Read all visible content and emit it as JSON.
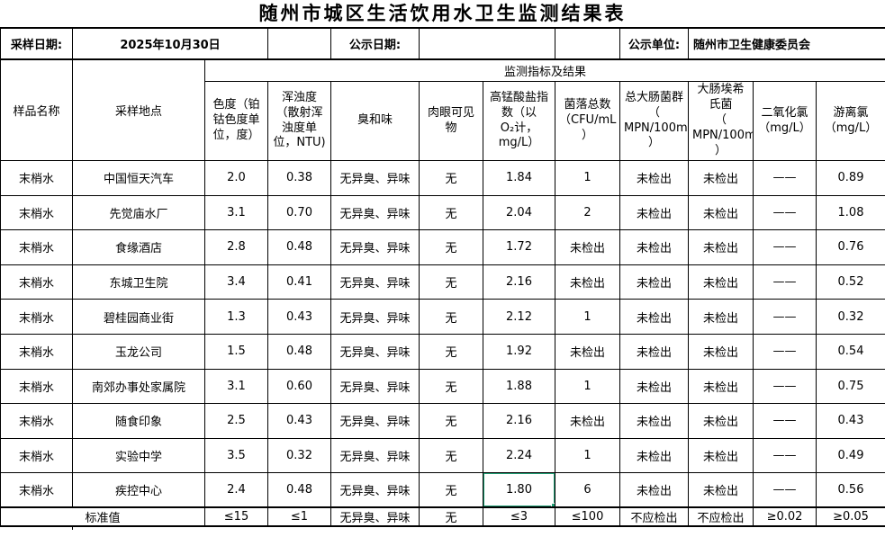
{
  "title": "随州市城区生活饮用水卫生监测结果表",
  "info_bar": {
    "sampling_date_label": "采样日期:",
    "sampling_date": "2025年10月30日",
    "publish_date_label": "公示日期:",
    "publish_date": "",
    "publish_unit_label": "公示单位:",
    "publish_unit": "随州市卫生健康委员会"
  },
  "table": {
    "group_header": "监测指标及结果",
    "columns_fixed": [
      "样品名称",
      "采样地点"
    ],
    "indicator_headers": [
      "色度（铂\n钴色度单\n位，度）",
      "浑浊度\n（散射浑\n浊度单\n位，NTU)",
      "臭和味",
      "肉眼可见\n物",
      "高锰酸盐指\n数（以\nO₂计，\nmg/L）",
      "菌落总数\n（CFU/mL\n）",
      "总大肠菌群\n（\nMPN/100mL\n）",
      "大肠埃希\n氏菌\n（\nMPN/100mL\n）",
      "二氧化氯\n（mg/L）",
      "游离氯\n（mg/L）"
    ],
    "rows": [
      [
        "末梢水",
        "中国恒天汽车",
        "2.0",
        "0.38",
        "无异臭、异味",
        "无",
        "1.84",
        "1",
        "未检出",
        "未检出",
        "——",
        "0.89"
      ],
      [
        "末梢水",
        "先觉庙水厂",
        "3.1",
        "0.70",
        "无异臭、异味",
        "无",
        "2.04",
        "2",
        "未检出",
        "未检出",
        "——",
        "1.08"
      ],
      [
        "末梢水",
        "食缘酒店",
        "2.8",
        "0.48",
        "无异臭、异味",
        "无",
        "1.72",
        "未检出",
        "未检出",
        "未检出",
        "——",
        "0.76"
      ],
      [
        "末梢水",
        "东城卫生院",
        "3.4",
        "0.41",
        "无异臭、异味",
        "无",
        "2.16",
        "未检出",
        "未检出",
        "未检出",
        "——",
        "0.52"
      ],
      [
        "末梢水",
        "碧桂园商业街",
        "1.3",
        "0.43",
        "无异臭、异味",
        "无",
        "2.12",
        "1",
        "未检出",
        "未检出",
        "——",
        "0.32"
      ],
      [
        "末梢水",
        "玉龙公司",
        "1.5",
        "0.48",
        "无异臭、异味",
        "无",
        "1.92",
        "未检出",
        "未检出",
        "未检出",
        "——",
        "0.54"
      ],
      [
        "末梢水",
        "南郊办事处家属院",
        "3.1",
        "0.60",
        "无异臭、异味",
        "无",
        "1.88",
        "1",
        "未检出",
        "未检出",
        "——",
        "0.75"
      ],
      [
        "末梢水",
        "随食印象",
        "2.5",
        "0.43",
        "无异臭、异味",
        "无",
        "2.16",
        "未检出",
        "未检出",
        "未检出",
        "——",
        "0.43"
      ],
      [
        "末梢水",
        "实验中学",
        "3.5",
        "0.32",
        "无异臭、异味",
        "无",
        "2.24",
        "1",
        "未检出",
        "未检出",
        "——",
        "0.49"
      ],
      [
        "末梢水",
        "疾控中心",
        "2.4",
        "0.48",
        "无异臭、异味",
        "无",
        "1.80",
        "6",
        "未检出",
        "未检出",
        "——",
        "0.56"
      ]
    ],
    "standard": {
      "label": "标准值",
      "values": [
        "≤15",
        "≤1",
        "无异臭、异味",
        "无",
        "≤3",
        "≤100",
        "不应检出",
        "不应检出",
        "≥0.02",
        "≥0.05"
      ]
    }
  },
  "selection": {
    "row_index": 9,
    "col_index": 6,
    "value": "1.80",
    "color": "#1e9e73"
  }
}
